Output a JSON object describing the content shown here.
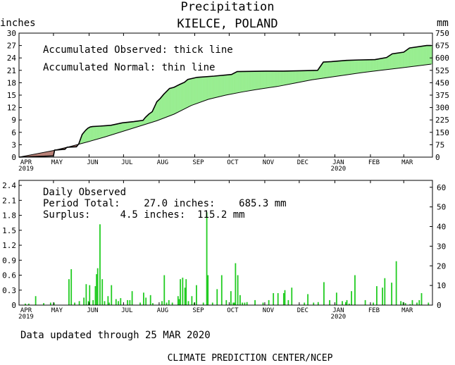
{
  "header": {
    "title": "Precipitation",
    "station": "KIELCE, POLAND",
    "left_unit": "inches",
    "right_unit": "mm"
  },
  "months": [
    "APR",
    "MAY",
    "JUN",
    "JUL",
    "AUG",
    "SEP",
    "OCT",
    "NOV",
    "DEC",
    "JAN",
    "FEB",
    "MAR"
  ],
  "year_labels": {
    "start": "2019",
    "jan": "2020"
  },
  "footer": {
    "updated": "Data updated through 25 MAR 2020",
    "credit": "CLIMATE PREDICTION CENTER/NCEP"
  },
  "colors": {
    "surplus": "#98ee90",
    "deficit": "#b87f75",
    "daily_bar": "#22cc22",
    "line": "#000000"
  },
  "chart_data": [
    {
      "type": "area",
      "legend": [
        "Accumulated Observed: thick line",
        "Accumulated Normal: thin line"
      ],
      "ylabel_left": "inches",
      "ylabel_right": "mm",
      "ylim": [
        0,
        30
      ],
      "yticks": [
        0,
        3,
        6,
        9,
        12,
        15,
        18,
        21,
        24,
        27,
        30
      ],
      "yticks_mm": [
        0,
        75,
        150,
        225,
        300,
        375,
        450,
        525,
        600,
        675,
        750
      ],
      "x_units": "days since 1 APR 2019",
      "xlim": [
        0,
        360
      ],
      "series": [
        {
          "name": "Accumulated Observed",
          "x": [
            0,
            30,
            31,
            40,
            41,
            42,
            50,
            52,
            55,
            58,
            60,
            62,
            64,
            70,
            75,
            80,
            90,
            100,
            108,
            110,
            113,
            116,
            119,
            120,
            123,
            126,
            131,
            135,
            140,
            144,
            147,
            155,
            170,
            185,
            190,
            215,
            230,
            245,
            260,
            262,
            265,
            272,
            285,
            295,
            310,
            320,
            325,
            335,
            340,
            355,
            359
          ],
          "y": [
            0,
            0.3,
            1.7,
            1.9,
            2.2,
            2.4,
            2.5,
            3.2,
            5.5,
            6.5,
            7.0,
            7.3,
            7.4,
            7.5,
            7.6,
            7.7,
            8.3,
            8.6,
            8.9,
            9.6,
            10.4,
            11.0,
            12.8,
            13.4,
            14.2,
            15.2,
            16.6,
            16.9,
            17.6,
            18.1,
            18.8,
            19.3,
            19.6,
            20.0,
            20.7,
            20.8,
            20.8,
            20.9,
            21.0,
            21.8,
            23.0,
            23.1,
            23.4,
            23.5,
            23.6,
            24.1,
            25.0,
            25.4,
            26.4,
            27.0,
            27.0
          ]
        },
        {
          "name": "Accumulated Normal",
          "x": [
            0,
            15,
            30,
            45,
            60,
            75,
            90,
            105,
            120,
            135,
            150,
            165,
            180,
            195,
            210,
            225,
            240,
            255,
            270,
            285,
            300,
            315,
            330,
            345,
            359
          ],
          "y": [
            0,
            0.8,
            1.6,
            2.6,
            3.7,
            4.9,
            6.2,
            7.5,
            8.8,
            10.4,
            12.5,
            14.0,
            15.0,
            15.8,
            16.5,
            17.1,
            17.9,
            18.7,
            19.3,
            19.9,
            20.5,
            21.0,
            21.5,
            22.0,
            22.5
          ]
        }
      ]
    },
    {
      "type": "bar",
      "legend": [
        "Daily Observed",
        "Period Total:    27.0 inches:    685.3 mm",
        "Surplus:     4.5 inches:  115.2 mm"
      ],
      "ylabel_left": "inches",
      "ylabel_right": "mm",
      "ylim": [
        0,
        2.5
      ],
      "yticks": [
        0,
        0.3,
        0.6,
        0.9,
        1.2,
        1.5,
        1.8,
        2.1,
        2.4
      ],
      "yticks_mm": [
        0,
        10,
        20,
        30,
        40,
        50,
        60
      ],
      "x_units": "days since 1 APR 2019",
      "series": [
        {
          "name": "Daily Observed",
          "x": [
            5,
            8,
            14,
            21,
            27,
            30,
            43,
            45,
            48,
            52,
            56,
            58,
            60,
            61,
            64,
            66,
            67,
            68,
            70,
            72,
            74,
            77,
            78,
            80,
            84,
            86,
            88,
            94,
            96,
            98,
            105,
            108,
            110,
            114,
            116,
            124,
            126,
            128,
            130,
            133,
            138,
            139,
            140,
            142,
            144,
            145,
            147,
            150,
            152,
            154,
            160,
            163,
            164,
            168,
            172,
            176,
            180,
            184,
            186,
            187,
            188,
            190,
            192,
            194,
            196,
            198,
            205,
            212,
            217,
            221,
            225,
            230,
            231,
            234,
            237,
            248,
            251,
            256,
            260,
            265,
            270,
            276,
            281,
            284,
            285,
            287,
            289,
            292,
            301,
            308,
            311,
            316,
            318,
            324,
            328,
            332,
            334,
            336,
            340,
            342,
            346,
            348,
            350,
            356
          ],
          "y": [
            0.03,
            0.03,
            0.18,
            0.04,
            0.05,
            0.05,
            0.52,
            0.72,
            0.05,
            0.08,
            0.15,
            0.42,
            0.08,
            0.4,
            0.1,
            0.38,
            0.62,
            0.74,
            1.62,
            0.52,
            0.08,
            0.18,
            0.05,
            0.4,
            0.12,
            0.08,
            0.14,
            0.1,
            0.1,
            0.28,
            0.05,
            0.25,
            0.15,
            0.2,
            0.04,
            0.08,
            0.6,
            0.05,
            0.1,
            0.05,
            0.18,
            0.12,
            0.52,
            0.55,
            0.35,
            0.52,
            0.08,
            0.18,
            0.05,
            0.4,
            0.05,
            1.86,
            0.6,
            0.05,
            0.32,
            0.6,
            0.1,
            0.28,
            0.05,
            0.05,
            0.84,
            0.6,
            0.2,
            0.05,
            0.05,
            0.06,
            0.1,
            0.05,
            0.1,
            0.24,
            0.24,
            0.24,
            0.3,
            0.1,
            0.35,
            0.05,
            0.22,
            0.05,
            0.06,
            0.46,
            0.1,
            0.25,
            0.08,
            0.06,
            0.1,
            0.03,
            0.28,
            0.6,
            0.1,
            0.05,
            0.38,
            0.35,
            0.54,
            0.45,
            0.88,
            0.08,
            0.06,
            0.04,
            0.02,
            0.1,
            0.05,
            0.1,
            0.24,
            0.05
          ]
        }
      ]
    }
  ]
}
